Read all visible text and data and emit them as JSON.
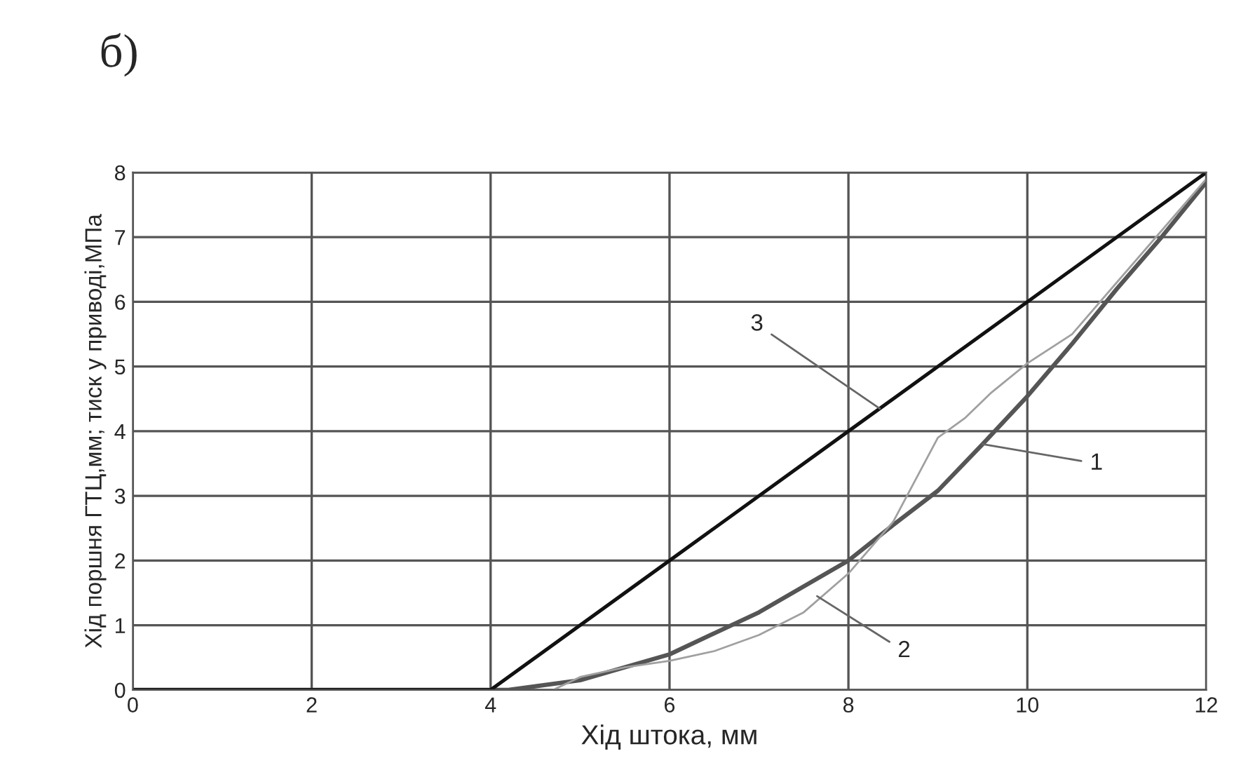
{
  "chart_data": {
    "type": "line",
    "title": "б)",
    "xlabel": "Хід штока, мм",
    "ylabel": "Хід поршня ГТЦ,мм; тиск у приводі,МПа",
    "xlim": [
      0,
      12
    ],
    "ylim": [
      0,
      8
    ],
    "xticks": [
      0,
      2,
      4,
      6,
      8,
      10,
      12
    ],
    "yticks": [
      0,
      1,
      2,
      3,
      4,
      5,
      6,
      7,
      8
    ],
    "grid": true,
    "marker": "none",
    "line_style": "solid",
    "series": [
      {
        "color": "#555555",
        "x": [
          0,
          4.2,
          5,
          6,
          7,
          8,
          8.5,
          9,
          9.5,
          10,
          10.5,
          11,
          11.5,
          12
        ],
        "values": [
          0,
          0,
          0.15,
          0.55,
          1.2,
          2.0,
          2.55,
          3.08,
          3.8,
          4.54,
          5.35,
          6.2,
          7.0,
          7.85
        ]
      },
      {
        "color": "#a0a0a0",
        "x": [
          4.7,
          5,
          5.5,
          6,
          6.5,
          7,
          7.5,
          8,
          8.5,
          9,
          9.3,
          9.6,
          10,
          10.5,
          11,
          11.5,
          12
        ],
        "values": [
          0,
          0.2,
          0.35,
          0.45,
          0.6,
          0.85,
          1.2,
          1.8,
          2.6,
          3.9,
          4.2,
          4.6,
          5.05,
          5.5,
          6.3,
          7.1,
          7.9
        ]
      },
      {
        "color": "#111111",
        "x": [
          0,
          4,
          6,
          8,
          10,
          12
        ],
        "values": [
          0,
          0,
          2,
          4,
          6,
          8
        ]
      }
    ],
    "annotations": [
      {
        "text": "1",
        "x": 9.5,
        "y": 3.8
      },
      {
        "text": "2",
        "x": 7.65,
        "y": 1.45
      },
      {
        "text": "3",
        "x": 8.35,
        "y": 4.35
      }
    ]
  }
}
